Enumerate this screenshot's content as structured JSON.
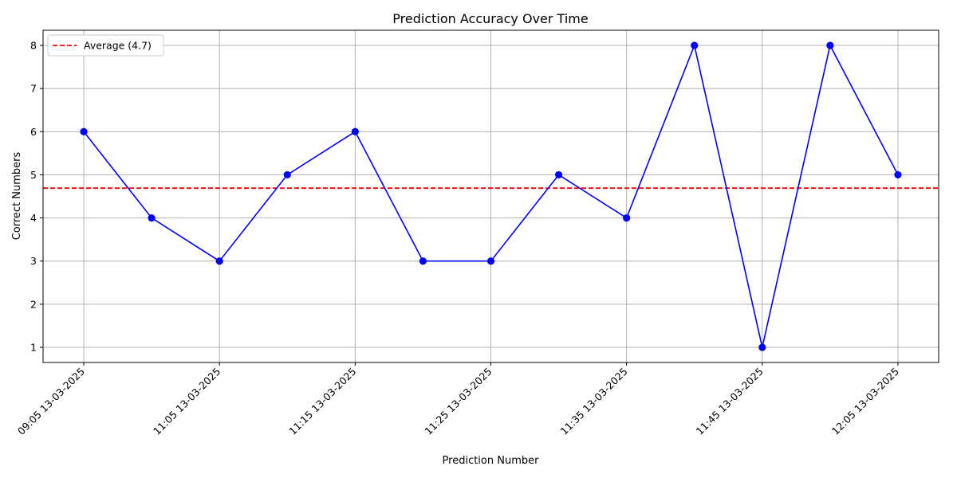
{
  "chart_data": {
    "type": "line",
    "title": "Prediction Accuracy Over Time",
    "xlabel": "Prediction Number",
    "ylabel": "Correct Numbers",
    "x": [
      0,
      1,
      2,
      3,
      4,
      5,
      6,
      7,
      8,
      9,
      10,
      11,
      12
    ],
    "xticks": [
      0,
      2,
      4,
      6,
      8,
      10,
      12
    ],
    "xtick_labels": [
      "09:05  13-03-2025",
      "11:05  13-03-2025",
      "11:15  13-03-2025",
      "11:25  13-03-2025",
      "11:35  13-03-2025",
      "11:45  13-03-2025",
      "12:05  13-03-2025"
    ],
    "xlim": [
      -0.6,
      12.6
    ],
    "yticks": [
      1,
      2,
      3,
      4,
      5,
      6,
      7,
      8
    ],
    "ylim": [
      0.65,
      8.35
    ],
    "series": [
      {
        "values": [
          6,
          4,
          3,
          5,
          6,
          3,
          3,
          5,
          4,
          8,
          1,
          8,
          5
        ],
        "color": "#0000ff",
        "marker": "circle"
      }
    ],
    "reference_line": {
      "label": "Average (4.7)",
      "value": 4.69,
      "color": "#ff0000",
      "style": "dashed"
    },
    "grid": true,
    "legend_position": "top-left"
  }
}
